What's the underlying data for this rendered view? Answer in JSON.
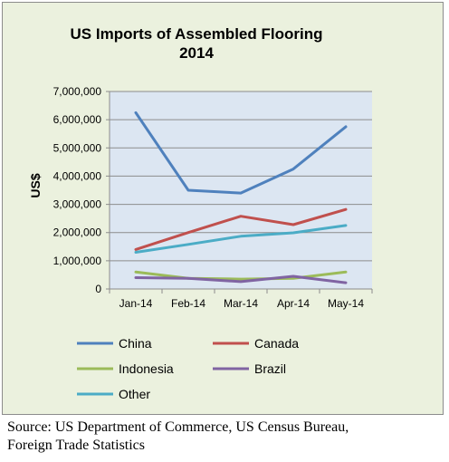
{
  "chart_data": {
    "type": "line",
    "title": [
      "US Imports  of Assembled Flooring",
      "2014"
    ],
    "xlabel": "",
    "ylabel": "US$",
    "categories": [
      "Jan-14",
      "Feb-14",
      "Mar-14",
      "Apr-14",
      "May-14"
    ],
    "ylim": [
      0,
      7000000
    ],
    "yticks": [
      0,
      1000000,
      2000000,
      3000000,
      4000000,
      5000000,
      6000000,
      7000000
    ],
    "ytick_labels": [
      "0",
      "1,000,000",
      "2,000,000",
      "3,000,000",
      "4,000,000",
      "5,000,000",
      "6,000,000",
      "7,000,000"
    ],
    "grid": true,
    "legend_position": "bottom",
    "series": [
      {
        "name": "China",
        "color": "#4f81bd",
        "values": [
          6250000,
          3500000,
          3400000,
          4250000,
          5750000
        ]
      },
      {
        "name": "Canada",
        "color": "#c0504d",
        "values": [
          1400000,
          2000000,
          2580000,
          2280000,
          2820000
        ]
      },
      {
        "name": "Indonesia",
        "color": "#9bbb59",
        "values": [
          600000,
          380000,
          350000,
          380000,
          600000
        ]
      },
      {
        "name": "Brazil",
        "color": "#8064a2",
        "values": [
          400000,
          380000,
          260000,
          450000,
          220000
        ]
      },
      {
        "name": "Other",
        "color": "#4bacc6",
        "values": [
          1300000,
          1580000,
          1870000,
          1990000,
          2250000
        ]
      }
    ]
  },
  "source_lines": [
    "Source: US Department of Commerce, US Census Bureau,",
    "Foreign Trade Statistics"
  ],
  "colors": {
    "chart_background": "#ebf1de",
    "plot_background": "#dce6f2",
    "gridline": "#8c8c8c"
  }
}
